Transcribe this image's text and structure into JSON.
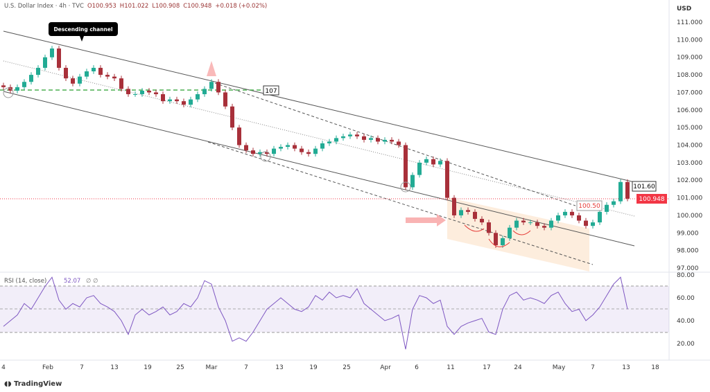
{
  "header": {
    "symbol": "U.S. Dollar Index · 4h · TVC",
    "open": "O100.953",
    "high": "H101.022",
    "low": "L100.908",
    "close": "C100.948",
    "change": "+0.018 (+0.02%)"
  },
  "currency": "USD",
  "annotations": {
    "channel_label": "Descending channel",
    "level_107": "107",
    "level_10160": "101.60",
    "level_10050": "100.50",
    "last_price": "100.948"
  },
  "rsi_label": "RSI (14, close)",
  "rsi_value": "52.07",
  "rsi_extra": "∅ ∅",
  "brand": "TradingView",
  "colors": {
    "up": "#22ab94",
    "down": "#a8303a",
    "rsi": "#7e57c2",
    "last": "#f23645"
  },
  "chart_data": [
    {
      "type": "candlestick",
      "title": "U.S. Dollar Index 4h",
      "ylim": [
        97,
        111
      ],
      "yticks": [
        "111.000",
        "110.000",
        "109.000",
        "108.000",
        "107.000",
        "106.000",
        "105.000",
        "104.000",
        "103.000",
        "102.000",
        "101.000",
        "100.000",
        "99.000",
        "98.000",
        "97.000"
      ],
      "xticks": [
        "4",
        "Feb",
        "7",
        "13",
        "19",
        "25",
        "Mar",
        "7",
        "13",
        "19",
        "25",
        "Apr",
        "6",
        "11",
        "17",
        "24",
        "May",
        "7",
        "13",
        "18"
      ],
      "closes": [
        107.3,
        107.1,
        107.3,
        107.6,
        108.0,
        108.4,
        109.0,
        109.5,
        108.4,
        107.8,
        107.5,
        107.9,
        108.2,
        108.4,
        108.0,
        107.9,
        107.8,
        107.2,
        106.9,
        106.9,
        107.1,
        107.0,
        106.9,
        106.5,
        106.6,
        106.5,
        106.3,
        106.6,
        106.9,
        107.2,
        107.6,
        107.0,
        106.2,
        105.0,
        104.0,
        103.7,
        103.5,
        103.6,
        103.5,
        103.8,
        103.9,
        104.0,
        103.8,
        103.6,
        103.5,
        103.8,
        104.1,
        104.2,
        104.4,
        104.5,
        104.6,
        104.5,
        104.3,
        104.4,
        104.2,
        104.3,
        104.2,
        104.0,
        101.6,
        102.3,
        103.0,
        103.2,
        102.9,
        103.1,
        101.0,
        100.0,
        100.3,
        100.2,
        99.8,
        99.6,
        99.0,
        98.3,
        98.7,
        99.3,
        99.7,
        99.6,
        99.6,
        99.4,
        99.3,
        99.7,
        100.0,
        100.2,
        100.0,
        99.7,
        99.4,
        99.6,
        100.2,
        100.6,
        100.8,
        101.9,
        100.95
      ]
    },
    {
      "type": "line",
      "title": "RSI (14, close)",
      "ylim": [
        20,
        80
      ],
      "yticks": [
        "80.00",
        "60.00",
        "40.00",
        "20.00"
      ],
      "bands": [
        30,
        50,
        70
      ],
      "values": [
        35,
        40,
        45,
        55,
        50,
        60,
        70,
        78,
        58,
        50,
        55,
        52,
        60,
        62,
        55,
        52,
        48,
        40,
        28,
        45,
        50,
        45,
        48,
        52,
        45,
        48,
        55,
        52,
        60,
        75,
        72,
        52,
        40,
        22,
        25,
        22,
        30,
        40,
        50,
        55,
        60,
        55,
        50,
        48,
        52,
        62,
        58,
        65,
        60,
        62,
        60,
        68,
        55,
        50,
        45,
        40,
        42,
        45,
        15,
        50,
        62,
        60,
        55,
        58,
        35,
        28,
        35,
        38,
        40,
        42,
        30,
        28,
        50,
        62,
        65,
        58,
        60,
        58,
        55,
        62,
        65,
        55,
        48,
        50,
        40,
        45,
        52,
        62,
        72,
        78,
        50
      ]
    }
  ]
}
